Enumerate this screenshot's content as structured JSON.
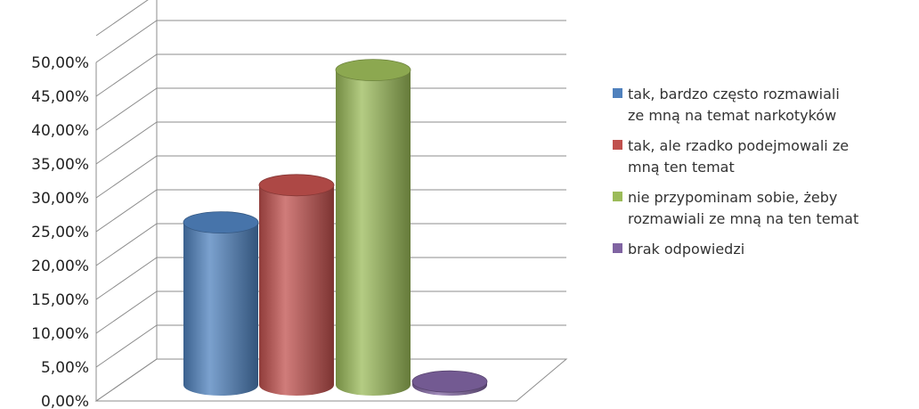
{
  "chart_data": {
    "type": "bar",
    "style": "3d-cylinder",
    "ylim": [
      0,
      50
    ],
    "y_ticks": [
      "0,00%",
      "5,00%",
      "10,00%",
      "15,00%",
      "20,00%",
      "25,00%",
      "30,00%",
      "35,00%",
      "40,00%",
      "45,00%",
      "50,00%"
    ],
    "grid": true,
    "legend_position": "right",
    "series": [
      {
        "name": "tak, bardzo często rozmawiali\nze mną na temat narkotyków",
        "value": 24.0,
        "color": "#4f81bd"
      },
      {
        "name": "tak, ale rzadko podejmowali ze\nmną ten temat",
        "value": 29.5,
        "color": "#c0504d"
      },
      {
        "name": "nie przypominam sobie, żeby\nrozmawiali ze mną na ten temat",
        "value": 46.5,
        "color": "#9bbb59"
      },
      {
        "name": "brak odpowiedzi",
        "value": 0.5,
        "color": "#8064a2"
      }
    ]
  }
}
